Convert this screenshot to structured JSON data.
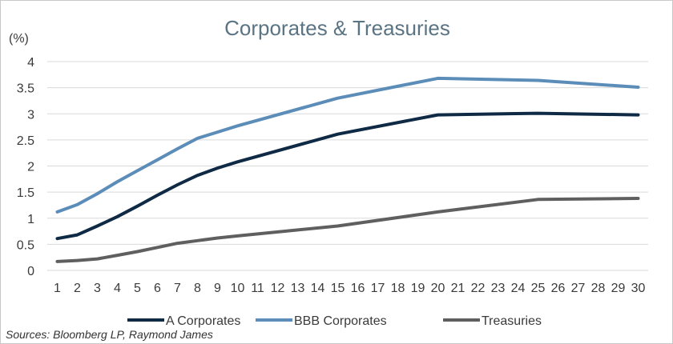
{
  "chart_data": {
    "type": "line",
    "title": "Corporates & Treasuries",
    "unit_label": "(%)",
    "x": [
      1,
      2,
      3,
      4,
      5,
      6,
      7,
      8,
      9,
      10,
      11,
      12,
      13,
      14,
      15,
      16,
      17,
      18,
      19,
      20,
      21,
      22,
      23,
      24,
      25,
      26,
      27,
      28,
      29,
      30
    ],
    "ylim": [
      0,
      4
    ],
    "yticks": [
      "0",
      "0.5",
      "1",
      "1.5",
      "2",
      "2.5",
      "3",
      "3.5",
      "4"
    ],
    "grid": true,
    "legend_position": "bottom",
    "series": [
      {
        "name": "A Corporates",
        "color": "#0f2a45",
        "points": [
          [
            1,
            0.61
          ],
          [
            2,
            0.68
          ],
          [
            3,
            0.85
          ],
          [
            4,
            1.03
          ],
          [
            5,
            1.23
          ],
          [
            6,
            1.44
          ],
          [
            7,
            1.64
          ],
          [
            8,
            1.82
          ],
          [
            9,
            1.96
          ],
          [
            10,
            2.08
          ],
          [
            15,
            2.61
          ],
          [
            20,
            2.98
          ],
          [
            25,
            3.01
          ],
          [
            30,
            2.98
          ]
        ]
      },
      {
        "name": "BBB Corporates",
        "color": "#5b8db8",
        "points": [
          [
            1,
            1.12
          ],
          [
            2,
            1.26
          ],
          [
            3,
            1.47
          ],
          [
            4,
            1.7
          ],
          [
            5,
            1.91
          ],
          [
            6,
            2.12
          ],
          [
            7,
            2.33
          ],
          [
            8,
            2.53
          ],
          [
            9,
            2.65
          ],
          [
            10,
            2.77
          ],
          [
            15,
            3.3
          ],
          [
            20,
            3.68
          ],
          [
            25,
            3.64
          ],
          [
            30,
            3.51
          ]
        ]
      },
      {
        "name": "Treasuries",
        "color": "#5f5f5f",
        "points": [
          [
            1,
            0.17
          ],
          [
            2,
            0.19
          ],
          [
            3,
            0.22
          ],
          [
            4,
            0.29
          ],
          [
            5,
            0.36
          ],
          [
            6,
            0.44
          ],
          [
            7,
            0.52
          ],
          [
            8,
            0.57
          ],
          [
            9,
            0.62
          ],
          [
            10,
            0.66
          ],
          [
            15,
            0.85
          ],
          [
            20,
            1.12
          ],
          [
            25,
            1.36
          ],
          [
            30,
            1.38
          ]
        ]
      }
    ]
  },
  "footer": {
    "source": "Sources: Bloomberg LP, Raymond James"
  }
}
